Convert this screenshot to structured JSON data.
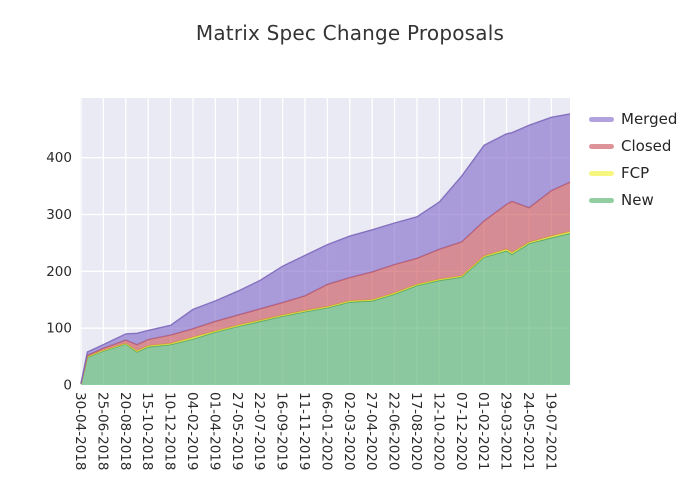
{
  "title": "Matrix Spec Change Proposals",
  "chart_data": {
    "type": "area",
    "stacked": true,
    "title": "Matrix Spec Change Proposals",
    "xlabel": "",
    "ylabel": "",
    "y_ticks": [
      0,
      100,
      200,
      300,
      400
    ],
    "ylim": [
      0,
      505
    ],
    "grid": true,
    "plot_bg": "#e9eaf3",
    "grid_color": "#ffffff",
    "tick_label_color": "#2b2b2b",
    "legend_position": "outside-right-top",
    "legend_order_top_to_bottom": [
      "Merged",
      "Closed",
      "FCP",
      "New"
    ],
    "stack_order_bottom_to_top": [
      "New",
      "FCP",
      "Closed",
      "Merged"
    ],
    "x_tick_labels": [
      "30-04-2018",
      "25-06-2018",
      "20-08-2018",
      "15-10-2018",
      "10-12-2018",
      "04-02-2019",
      "01-04-2019",
      "27-05-2019",
      "22-07-2019",
      "16-09-2019",
      "11-11-2019",
      "06-01-2020",
      "02-03-2020",
      "27-04-2020",
      "22-06-2020",
      "17-08-2020",
      "12-10-2020",
      "07-12-2020",
      "01-02-2021",
      "29-03-2021",
      "24-05-2021",
      "19-07-2021"
    ],
    "series": [
      {
        "name": "New",
        "key": "new",
        "fill": "rgba(89,180,114,0.65)",
        "line": "#4a9e62"
      },
      {
        "name": "FCP",
        "key": "fcp",
        "fill": "rgba(243,243,60,0.65)",
        "line": "#dedc30"
      },
      {
        "name": "Closed",
        "key": "closed",
        "fill": "rgba(205,89,97,0.65)",
        "line": "#c2565b"
      },
      {
        "name": "Merged",
        "key": "merged",
        "fill": "rgba(135,112,205,0.65)",
        "line": "#7e68bb"
      }
    ],
    "samples": [
      {
        "frac": 0.0,
        "label": "30-04-2018",
        "new": 2,
        "fcp": 0,
        "closed": 0,
        "merged": 1
      },
      {
        "frac": 0.013,
        "label": "",
        "new": 49,
        "fcp": 1,
        "closed": 2,
        "merged": 6
      },
      {
        "frac": 0.0458,
        "label": "25-06-2018",
        "new": 60,
        "fcp": 1,
        "closed": 4,
        "merged": 6
      },
      {
        "frac": 0.0916,
        "label": "20-08-2018",
        "new": 72,
        "fcp": 1,
        "closed": 6,
        "merged": 11
      },
      {
        "frac": 0.1145,
        "label": "",
        "new": 58,
        "fcp": 2,
        "closed": 11,
        "merged": 20
      },
      {
        "frac": 0.1374,
        "label": "15-10-2018",
        "new": 67,
        "fcp": 2,
        "closed": 11,
        "merged": 16
      },
      {
        "frac": 0.1832,
        "label": "10-12-2018",
        "new": 71,
        "fcp": 2,
        "closed": 15,
        "merged": 17
      },
      {
        "frac": 0.229,
        "label": "04-02-2019",
        "new": 81,
        "fcp": 3,
        "closed": 15,
        "merged": 34
      },
      {
        "frac": 0.2748,
        "label": "01-04-2019",
        "new": 93,
        "fcp": 2,
        "closed": 17,
        "merged": 36
      },
      {
        "frac": 0.3206,
        "label": "27-05-2019",
        "new": 103,
        "fcp": 2,
        "closed": 18,
        "merged": 42
      },
      {
        "frac": 0.3664,
        "label": "22-07-2019",
        "new": 112,
        "fcp": 2,
        "closed": 20,
        "merged": 50
      },
      {
        "frac": 0.4123,
        "label": "16-09-2019",
        "new": 121,
        "fcp": 2,
        "closed": 22,
        "merged": 64
      },
      {
        "frac": 0.4581,
        "label": "11-11-2019",
        "new": 129,
        "fcp": 2,
        "closed": 26,
        "merged": 71
      },
      {
        "frac": 0.5039,
        "label": "06-01-2020",
        "new": 136,
        "fcp": 2,
        "closed": 39,
        "merged": 70
      },
      {
        "frac": 0.5497,
        "label": "02-03-2020",
        "new": 146,
        "fcp": 2,
        "closed": 41,
        "merged": 73
      },
      {
        "frac": 0.5955,
        "label": "27-04-2020",
        "new": 148,
        "fcp": 2,
        "closed": 49,
        "merged": 74
      },
      {
        "frac": 0.6413,
        "label": "22-06-2020",
        "new": 160,
        "fcp": 2,
        "closed": 50,
        "merged": 73
      },
      {
        "frac": 0.6871,
        "label": "17-08-2020",
        "new": 175,
        "fcp": 2,
        "closed": 46,
        "merged": 73
      },
      {
        "frac": 0.7329,
        "label": "12-10-2020",
        "new": 184,
        "fcp": 2,
        "closed": 53,
        "merged": 83
      },
      {
        "frac": 0.7787,
        "label": "07-12-2020",
        "new": 190,
        "fcp": 2,
        "closed": 60,
        "merged": 116
      },
      {
        "frac": 0.8245,
        "label": "01-02-2021",
        "new": 225,
        "fcp": 2,
        "closed": 62,
        "merged": 133
      },
      {
        "frac": 0.8703,
        "label": "29-03-2021",
        "new": 236,
        "fcp": 3,
        "closed": 79,
        "merged": 124
      },
      {
        "frac": 0.8814,
        "label": "",
        "new": 230,
        "fcp": 3,
        "closed": 90,
        "merged": 121
      },
      {
        "frac": 0.9161,
        "label": "24-05-2021",
        "new": 249,
        "fcp": 2,
        "closed": 61,
        "merged": 145
      },
      {
        "frac": 0.9619,
        "label": "19-07-2021",
        "new": 259,
        "fcp": 3,
        "closed": 80,
        "merged": 129
      },
      {
        "frac": 1.0,
        "label": "",
        "new": 267,
        "fcp": 3,
        "closed": 87,
        "merged": 120
      }
    ]
  }
}
